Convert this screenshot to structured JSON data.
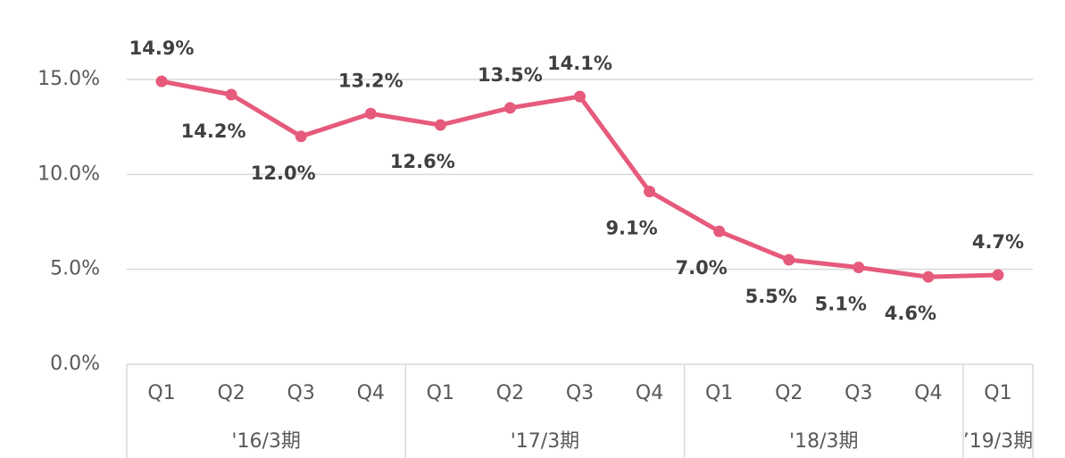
{
  "chart_data": {
    "type": "line",
    "groups": [
      {
        "label": "'16/3期",
        "categories": [
          "Q1",
          "Q2",
          "Q3",
          "Q4"
        ]
      },
      {
        "label": "'17/3期",
        "categories": [
          "Q1",
          "Q2",
          "Q3",
          "Q4"
        ]
      },
      {
        "label": "'18/3期",
        "categories": [
          "Q1",
          "Q2",
          "Q3",
          "Q4"
        ]
      },
      {
        "label": "’19/3期",
        "categories": [
          "Q1"
        ]
      }
    ],
    "values": [
      14.9,
      14.2,
      12.0,
      13.2,
      12.6,
      13.5,
      14.1,
      9.1,
      7.0,
      5.5,
      5.1,
      4.6,
      4.7
    ],
    "value_labels": [
      "14.9%",
      "14.2%",
      "12.0%",
      "13.2%",
      "12.6%",
      "13.5%",
      "14.1%",
      "9.1%",
      "7.0%",
      "5.5%",
      "5.1%",
      "4.6%",
      "4.7%"
    ],
    "color": "#e65a7b",
    "ylim": [
      0,
      15
    ],
    "yticks": [
      {
        "value": 0,
        "label": "0.0%"
      },
      {
        "value": 5,
        "label": "5.0%"
      },
      {
        "value": 10,
        "label": "10.0%"
      },
      {
        "value": 15,
        "label": "15.0%"
      }
    ],
    "grid": true
  }
}
